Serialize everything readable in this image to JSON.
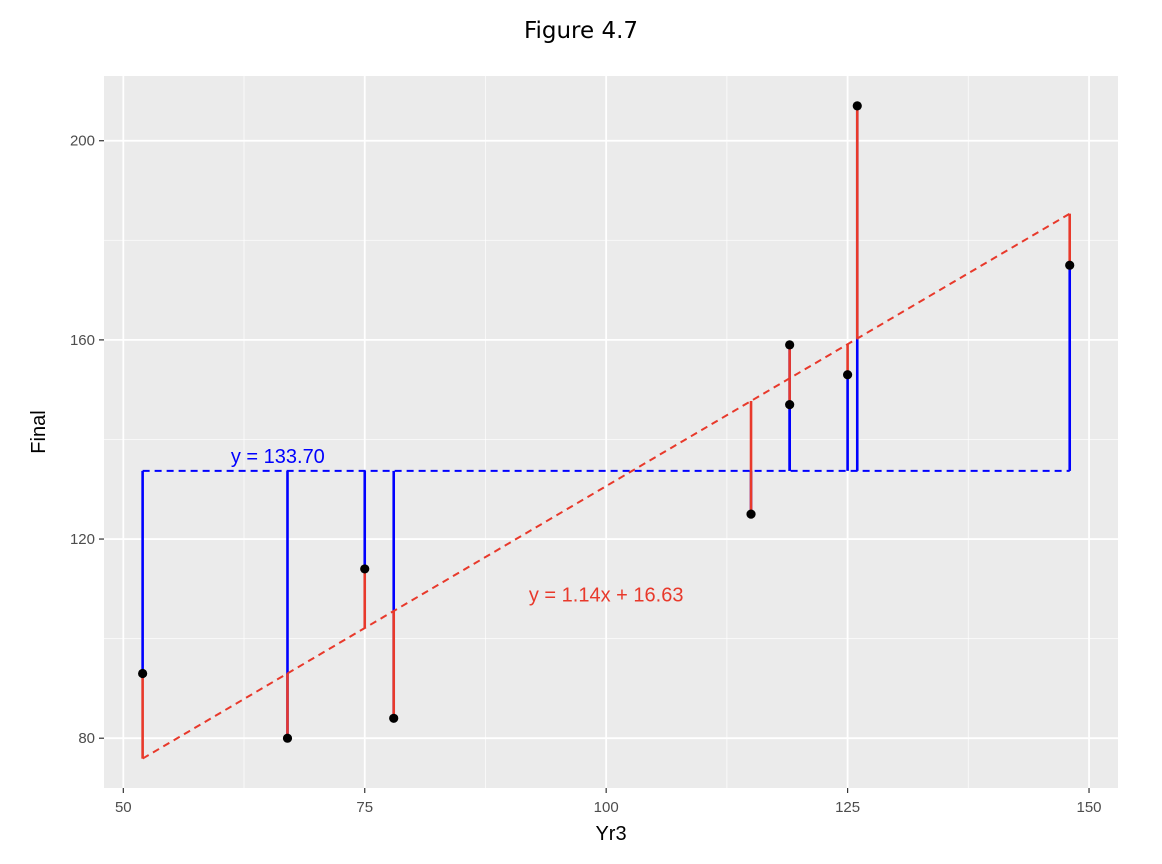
{
  "chart_data": {
    "type": "scatter",
    "title": "Figure 4.7",
    "xlabel": "Yr3",
    "ylabel": "Final",
    "xlim": [
      48,
      153
    ],
    "ylim": [
      70,
      213
    ],
    "x_ticks": [
      50,
      75,
      100,
      125,
      150
    ],
    "y_ticks": [
      80,
      120,
      160,
      200
    ],
    "grid": true,
    "points": [
      {
        "x": 52,
        "y": 93
      },
      {
        "x": 67,
        "y": 80
      },
      {
        "x": 75,
        "y": 114
      },
      {
        "x": 78,
        "y": 84
      },
      {
        "x": 115,
        "y": 125
      },
      {
        "x": 119,
        "y": 159
      },
      {
        "x": 119,
        "y": 147
      },
      {
        "x": 125,
        "y": 153
      },
      {
        "x": 126,
        "y": 207
      },
      {
        "x": 148,
        "y": 175
      }
    ],
    "mean_line": {
      "y": 133.7,
      "color": "#0000ff",
      "label": "y = 133.70"
    },
    "regression_line": {
      "slope": 1.14,
      "intercept": 16.63,
      "color": "#e8392b",
      "label": "y = 1.14x + 16.63"
    },
    "colors": {
      "panel": "#ebebeb",
      "grid": "#ffffff",
      "point": "#000000",
      "mean_residual": "#0000ff",
      "fit_residual": "#e8392b"
    }
  }
}
